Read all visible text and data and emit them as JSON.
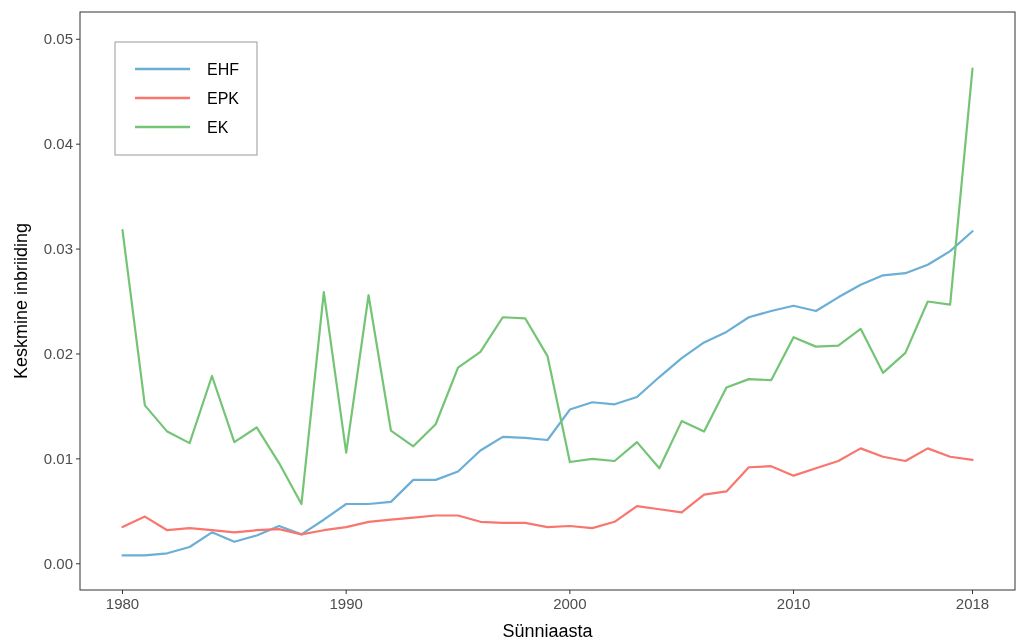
{
  "chart_data": {
    "type": "line",
    "xlabel": "Sünniaasta",
    "ylabel": "Keskmine inbriiding",
    "x": [
      1980,
      1981,
      1982,
      1983,
      1984,
      1985,
      1986,
      1987,
      1988,
      1989,
      1990,
      1991,
      1992,
      1993,
      1994,
      1995,
      1996,
      1997,
      1998,
      1999,
      2000,
      2001,
      2002,
      2003,
      2004,
      2005,
      2006,
      2007,
      2008,
      2009,
      2010,
      2011,
      2012,
      2013,
      2014,
      2015,
      2016,
      2017,
      2018
    ],
    "series": [
      {
        "name": "EHF",
        "color": "#6baed6",
        "values": [
          0.0008,
          0.0008,
          0.001,
          0.0016,
          0.003,
          0.0021,
          0.0027,
          0.0036,
          0.0028,
          0.0042,
          0.0057,
          0.0057,
          0.0059,
          0.008,
          0.008,
          0.0088,
          0.0108,
          0.0121,
          0.012,
          0.0118,
          0.0147,
          0.0154,
          0.0152,
          0.0159,
          0.0178,
          0.0196,
          0.0211,
          0.0221,
          0.0235,
          0.0241,
          0.0246,
          0.0241,
          0.0254,
          0.0266,
          0.0275,
          0.0277,
          0.0285,
          0.0298,
          0.0317
        ]
      },
      {
        "name": "EPK",
        "color": "#f8766d",
        "values": [
          0.0035,
          0.0045,
          0.0032,
          0.0034,
          0.0032,
          0.003,
          0.0032,
          0.0033,
          0.0028,
          0.0032,
          0.0035,
          0.004,
          0.0042,
          0.0044,
          0.0046,
          0.0046,
          0.004,
          0.0039,
          0.0039,
          0.0035,
          0.0036,
          0.0034,
          0.004,
          0.0055,
          0.0052,
          0.0049,
          0.0066,
          0.0069,
          0.0092,
          0.0093,
          0.0084,
          0.0091,
          0.0098,
          0.011,
          0.0102,
          0.0098,
          0.011,
          0.0102,
          0.0099
        ]
      },
      {
        "name": "EK",
        "color": "#74c476",
        "values": [
          0.0318,
          0.0151,
          0.0126,
          0.0115,
          0.0179,
          0.0116,
          0.013,
          0.0096,
          0.0057,
          0.0259,
          0.0106,
          0.0256,
          0.0127,
          0.0112,
          0.0133,
          0.0187,
          0.0202,
          0.0235,
          0.0234,
          0.0198,
          0.0097,
          0.01,
          0.0098,
          0.0116,
          0.0091,
          0.0136,
          0.0126,
          0.0168,
          0.0176,
          0.0175,
          0.0216,
          0.0207,
          0.0208,
          0.0224,
          0.0182,
          0.0201,
          0.025,
          0.0247,
          0.0472
        ]
      }
    ],
    "xlim": [
      1978.1,
      2019.9
    ],
    "xticks": [
      1980,
      1990,
      2000,
      2010,
      2018
    ],
    "ylim": [
      -0.0025,
      0.0526
    ],
    "yticks": [
      {
        "value": 0,
        "label": "0.00"
      },
      {
        "value": 0.01,
        "label": "0.01"
      },
      {
        "value": 0.02,
        "label": "0.02"
      },
      {
        "value": 0.03,
        "label": "0.03"
      },
      {
        "value": 0.04,
        "label": "0.04"
      },
      {
        "value": 0.05,
        "label": "0.05"
      }
    ],
    "grid": false,
    "legend": "top left",
    "marker": "none",
    "line_style": "solid"
  }
}
